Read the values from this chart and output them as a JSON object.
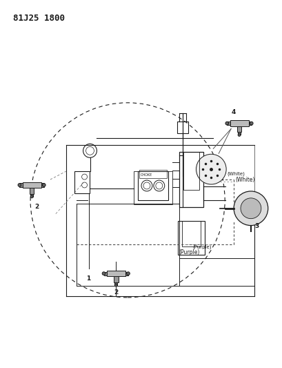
{
  "title": "81J25 1800",
  "bg_color": "#ffffff",
  "line_color": "#1a1a1a",
  "title_fontsize": 9,
  "label1": "1",
  "label2": "2",
  "label3": "3",
  "label4": "4",
  "label_white": "(White)",
  "label_purple": "(Purple)"
}
